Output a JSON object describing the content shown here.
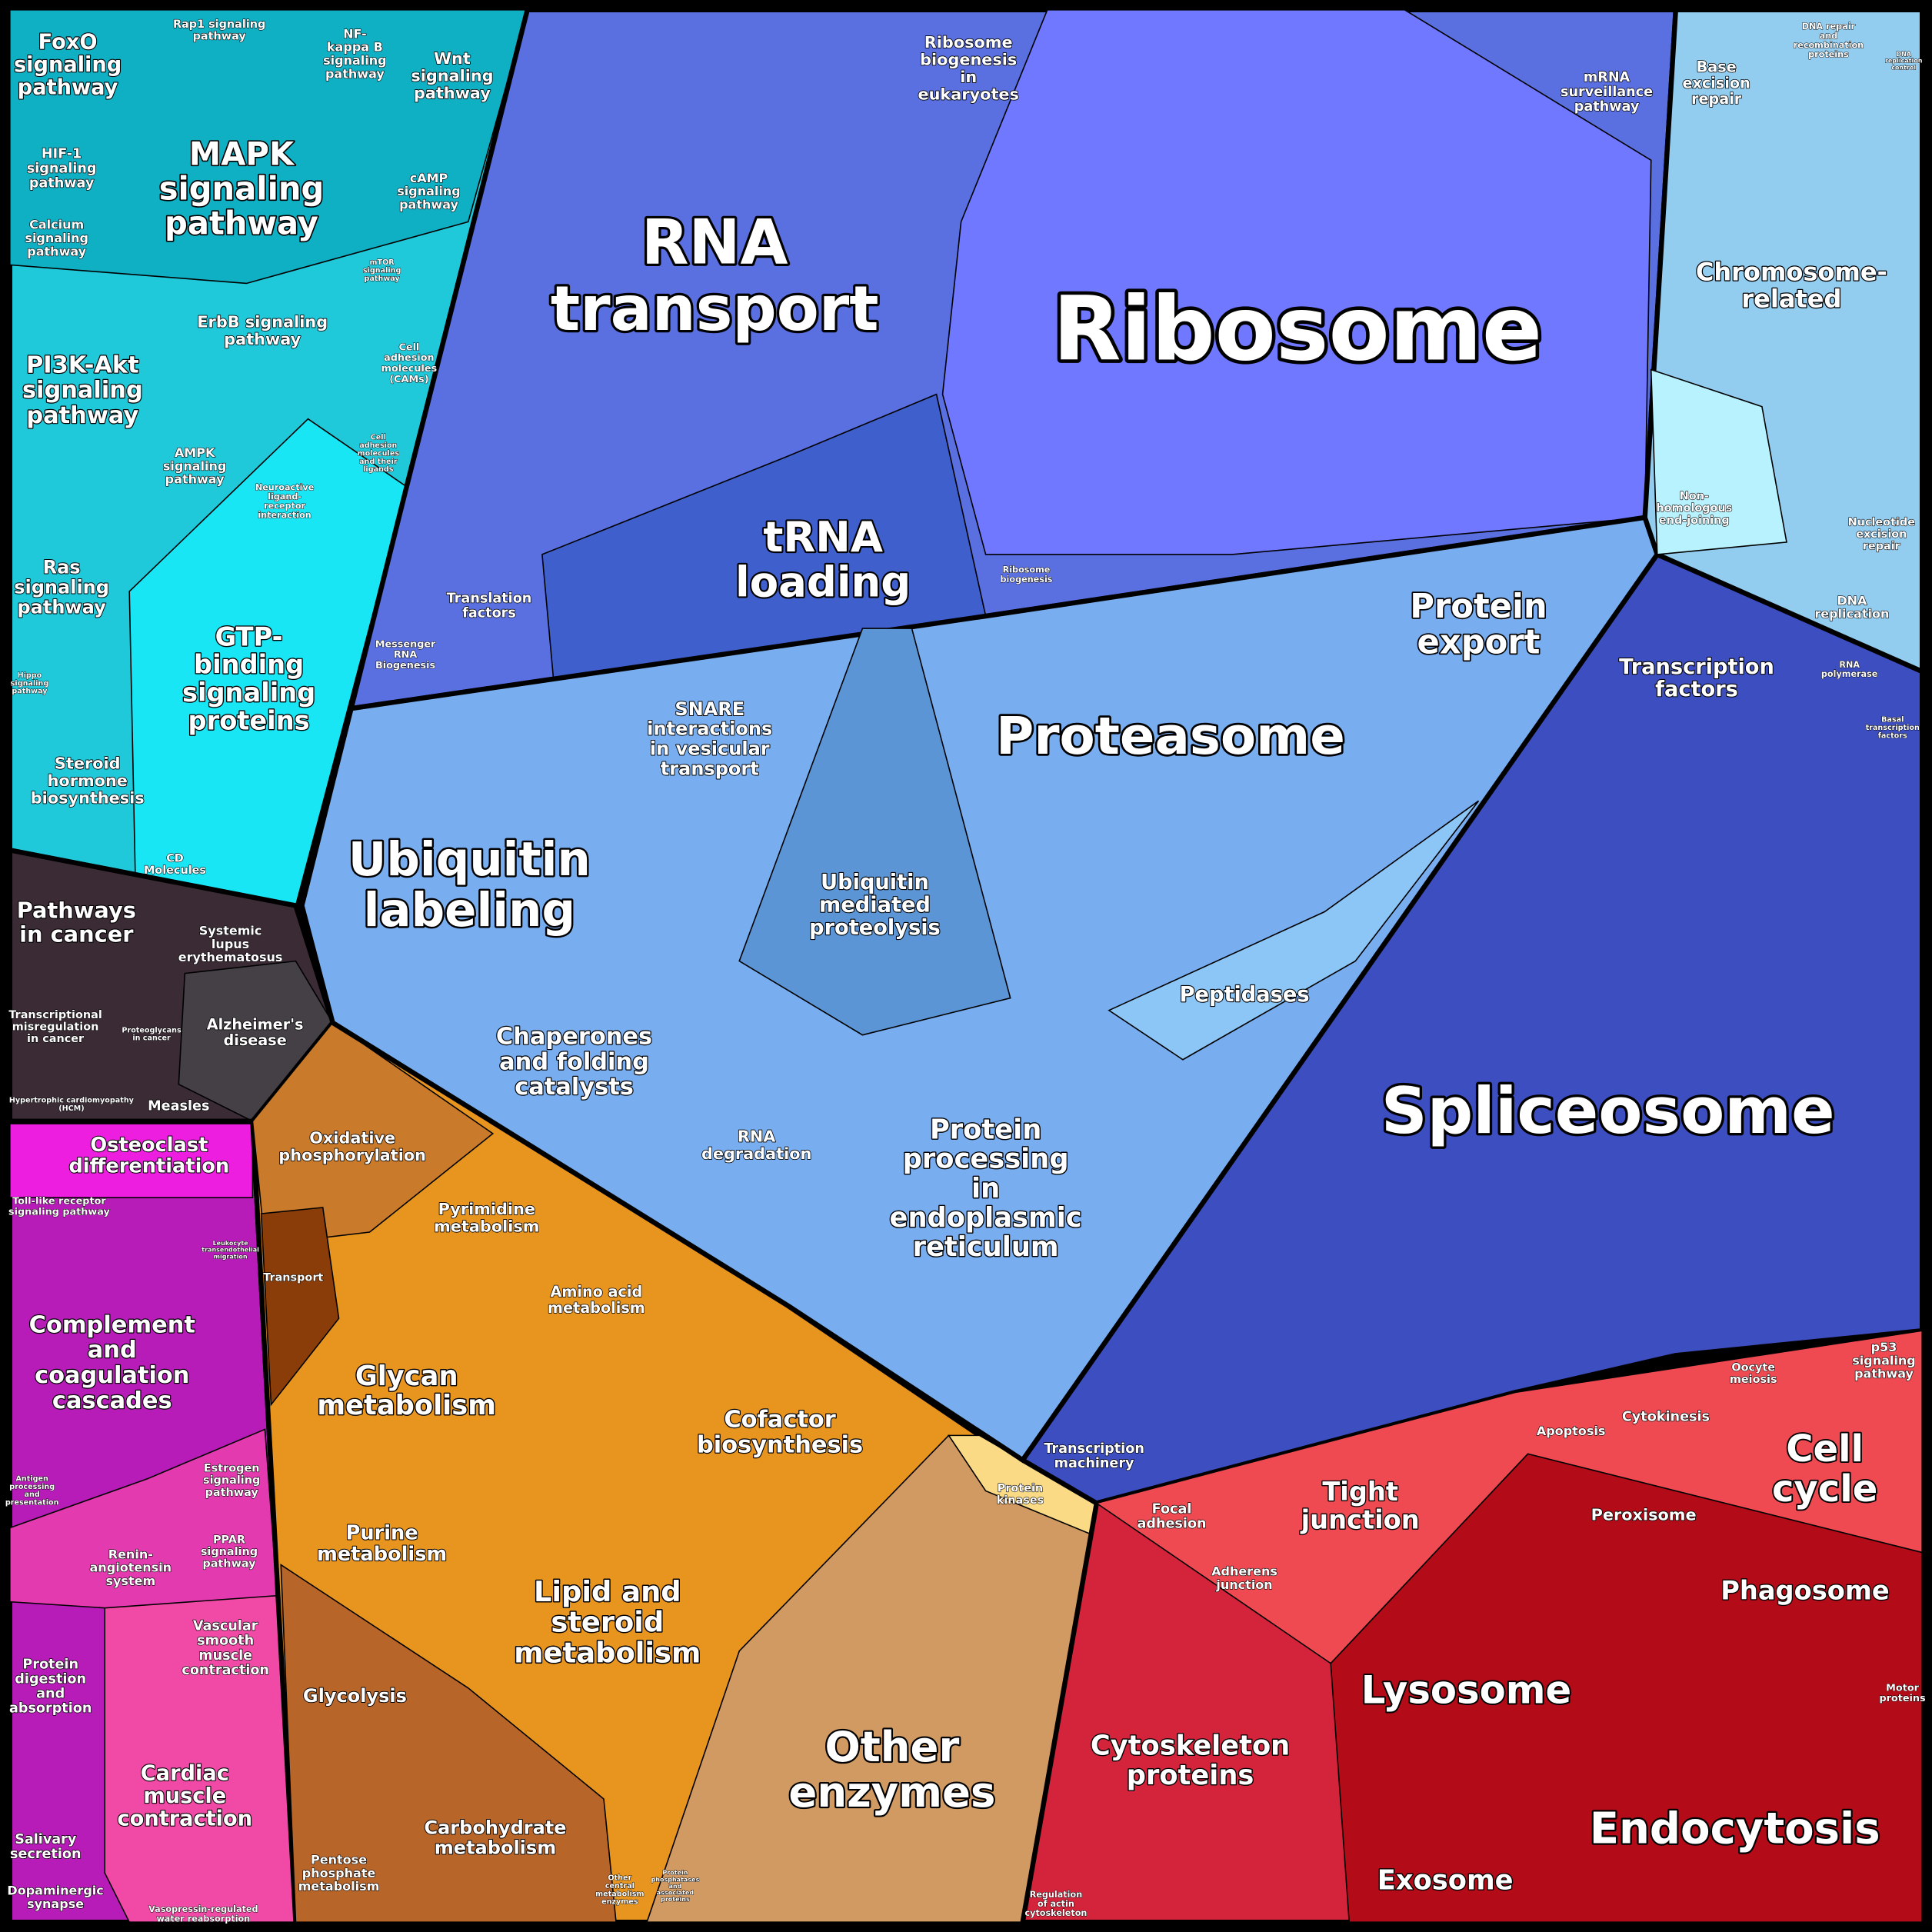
{
  "labels": [
    [
      "FoxO",
      "signaling",
      "pathway"
    ],
    [
      "Rap1 signaling",
      "pathway"
    ],
    [
      "NF-",
      "kappa B",
      "signaling",
      "pathway"
    ],
    [
      "Wnt",
      "signaling",
      "pathway"
    ],
    [
      "HIF-1",
      "signaling",
      "pathway"
    ],
    [
      "MAPK",
      "signaling",
      "pathway"
    ],
    [
      "cAMP",
      "signaling",
      "pathway"
    ],
    [
      "Calcium",
      "signaling",
      "pathway"
    ],
    [
      "mTOR",
      "signaling",
      "pathway"
    ],
    [
      "ErbB signaling",
      "pathway"
    ],
    [
      "Cell",
      "adhesion",
      "molecules",
      "(CAMs)"
    ],
    [
      "PI3K-Akt",
      "signaling",
      "pathway"
    ],
    [
      "Cell",
      "adhesion",
      "molecules",
      "and their",
      "ligands"
    ],
    [
      "AMPK",
      "signaling",
      "pathway"
    ],
    [
      "Neuroactive",
      "ligand-",
      "receptor",
      "interaction"
    ],
    [
      "Ras",
      "signaling",
      "pathway"
    ],
    [
      "GTP-",
      "binding",
      "signaling",
      "proteins"
    ],
    [
      "Hippo",
      "signaling",
      "pathway"
    ],
    [
      "Steroid",
      "hormone",
      "biosynthesis"
    ],
    [
      "CD",
      "Molecules"
    ],
    [
      "Pathways",
      "in cancer"
    ],
    [
      "Systemic",
      "lupus",
      "erythematosus"
    ],
    [
      "Transcriptional",
      "misregulation",
      "in cancer"
    ],
    [
      "Proteoglycans",
      "in cancer"
    ],
    [
      "Alzheimer's",
      "disease"
    ],
    [
      "Hypertrophic cardiomyopathy",
      "(HCM)"
    ],
    [
      "Measles"
    ],
    [
      "Osteoclast",
      "differentiation"
    ],
    [
      "Toll-like receptor",
      "signaling pathway"
    ],
    [
      "Leukocyte",
      "transendothelial",
      "migration"
    ],
    [
      "Complement",
      "and",
      "coagulation",
      "cascades"
    ],
    [
      "Antigen",
      "processing",
      "and",
      "presentation"
    ],
    [
      "Estrogen",
      "signaling",
      "pathway"
    ],
    [
      "Renin-",
      "angiotensin",
      "system"
    ],
    [
      "PPAR",
      "signaling",
      "pathway"
    ],
    [
      "Protein",
      "digestion",
      "and",
      "absorption"
    ],
    [
      "Vascular",
      "smooth",
      "muscle",
      "contraction"
    ],
    [
      "Cardiac",
      "muscle",
      "contraction"
    ],
    [
      "Salivary",
      "secretion"
    ],
    [
      "Dopaminergic",
      "synapse"
    ],
    [
      "Vasopressin-regulated",
      "water reabsorption"
    ],
    [
      "Oxidative",
      "phosphorylation"
    ],
    [
      "Pyrimidine",
      "metabolism"
    ],
    [
      "Transport"
    ],
    [
      "Amino acid",
      "metabolism"
    ],
    [
      "Glycan",
      "metabolism"
    ],
    [
      "Cofactor",
      "biosynthesis"
    ],
    [
      "Purine",
      "metabolism"
    ],
    [
      "Lipid and",
      "steroid",
      "metabolism"
    ],
    [
      "Glycolysis"
    ],
    [
      "Carbohydrate",
      "metabolism"
    ],
    [
      "Pentose",
      "phosphate",
      "metabolism"
    ],
    [
      "Other",
      "central",
      "metabolism",
      "enzymes"
    ],
    [
      "Protein",
      "kinases"
    ],
    [
      "Other",
      "enzymes"
    ],
    [
      "Protein",
      "phosphatases",
      "and",
      "associated",
      "proteins"
    ],
    [
      "Ribosome",
      "biogenesis",
      "in",
      "eukaryotes"
    ],
    [
      "RNA",
      "transport"
    ],
    [
      "Ribosome"
    ],
    [
      "mRNA",
      "surveillance",
      "pathway"
    ],
    [
      "tRNA",
      "loading"
    ],
    [
      "Translation",
      "factors"
    ],
    [
      "Ribosome",
      "biogenesis"
    ],
    [
      "Messenger",
      "RNA",
      "Biogenesis"
    ],
    [
      "DNA repair",
      "and",
      "recombination",
      "proteins"
    ],
    [
      "DNA",
      "replication",
      "control"
    ],
    [
      "Base",
      "excision",
      "repair"
    ],
    [
      "Chromosome-",
      "related"
    ],
    [
      "Non-",
      "homologous",
      "end-joining"
    ],
    [
      "Nucleotide",
      "excision",
      "repair"
    ],
    [
      "DNA",
      "replication"
    ],
    [
      "Protein",
      "export"
    ],
    [
      "SNARE",
      "interactions",
      "in vesicular",
      "transport"
    ],
    [
      "Proteasome"
    ],
    [
      "Ubiquitin",
      "labeling"
    ],
    [
      "Ubiquitin",
      "mediated",
      "proteolysis"
    ],
    [
      "Peptidases"
    ],
    [
      "Chaperones",
      "and folding",
      "catalysts"
    ],
    [
      "RNA",
      "degradation"
    ],
    [
      "Protein",
      "processing",
      "in",
      "endoplasmic",
      "reticulum"
    ],
    [
      "Transcription",
      "factors"
    ],
    [
      "RNA",
      "polymerase"
    ],
    [
      "Basal",
      "transcription",
      "factors"
    ],
    [
      "Spliceosome"
    ],
    [
      "Transcription",
      "machinery"
    ],
    [
      "p53",
      "signaling",
      "pathway"
    ],
    [
      "Oocyte",
      "meiosis"
    ],
    [
      "Cytokinesis"
    ],
    [
      "Apoptosis"
    ],
    [
      "Cell",
      "cycle"
    ],
    [
      "Tight",
      "junction"
    ],
    [
      "Focal",
      "adhesion"
    ],
    [
      "Peroxisome"
    ],
    [
      "Adherens",
      "junction"
    ],
    [
      "Phagosome"
    ],
    [
      "Motor",
      "proteins"
    ],
    [
      "Lysosome"
    ],
    [
      "Cytoskeleton",
      "proteins"
    ],
    [
      "Endocytosis"
    ],
    [
      "Exosome"
    ],
    [
      "Regulation",
      "of actin",
      "cytoskeleton"
    ]
  ]
}
